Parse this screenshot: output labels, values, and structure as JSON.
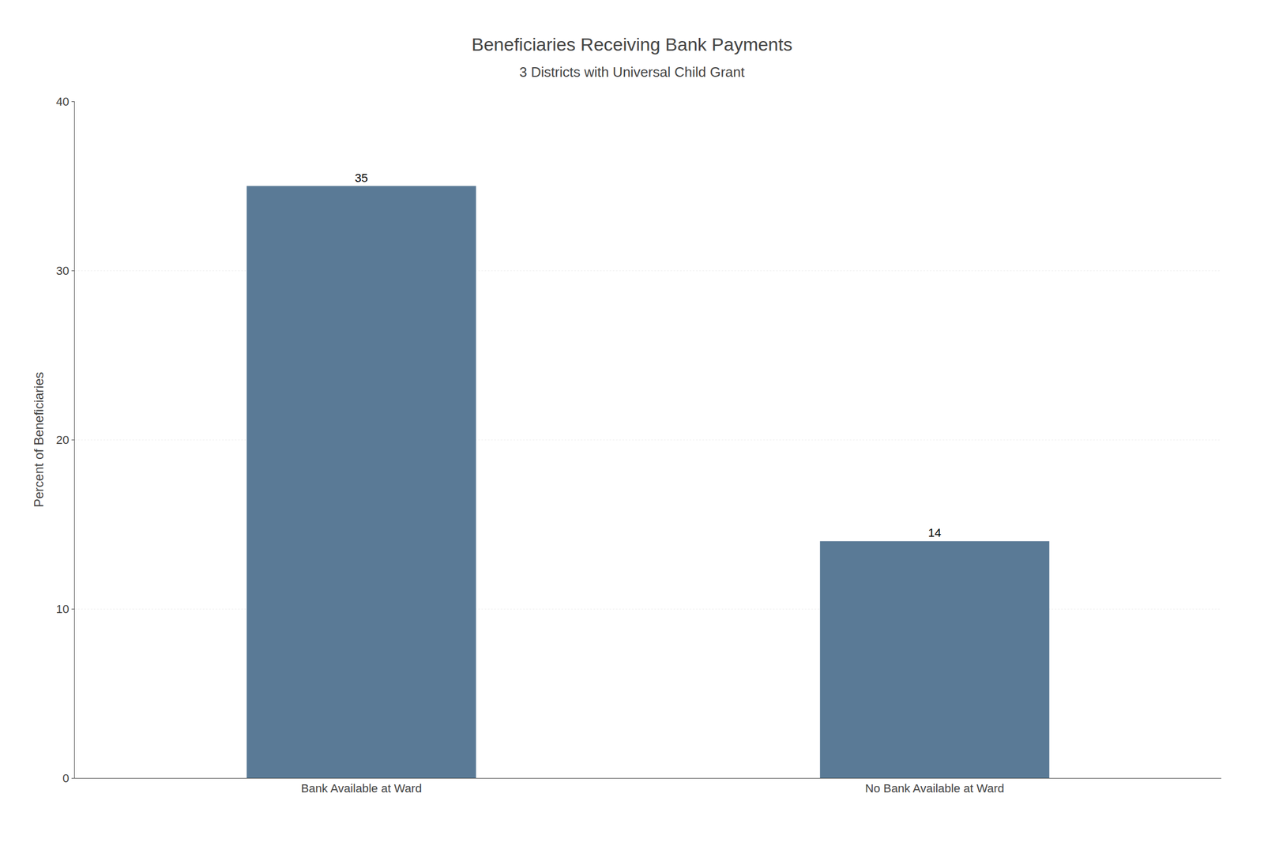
{
  "chart_data": {
    "type": "bar",
    "title": "Beneficiaries Receiving Bank Payments",
    "subtitle": "3 Districts with Universal Child Grant",
    "categories": [
      "Bank Available at Ward",
      "No Bank Available at Ward"
    ],
    "values": [
      35,
      14
    ],
    "color": "#5a7a96",
    "ylabel": "Percent of Beneficiaries",
    "ylim": [
      0,
      40
    ],
    "yticks": [
      0,
      10,
      20,
      30,
      40
    ],
    "grid": true,
    "data_labels": true
  }
}
